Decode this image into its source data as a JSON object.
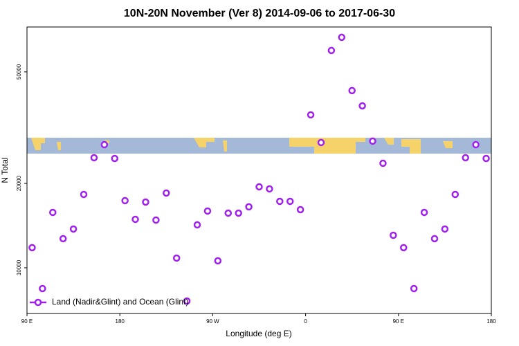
{
  "chart_data": {
    "type": "scatter",
    "title": "10N-20N November (Ver 8)   2014-09-06 to 2017-06-30",
    "x_label": "Longitude (deg E)",
    "y_label": "N Total",
    "xlim": [
      90,
      540
    ],
    "xticks": [
      {
        "value": 90,
        "label": "90 E"
      },
      {
        "value": 180,
        "label": "180"
      },
      {
        "value": 270,
        "label": "90 W"
      },
      {
        "value": 360,
        "label": "0"
      },
      {
        "value": 450,
        "label": "90 E"
      },
      {
        "value": 540,
        "label": "180"
      }
    ],
    "ylim": [
      6870,
      72300
    ],
    "ylog": true,
    "yticks": [
      10000,
      20000,
      50000
    ],
    "legend": "bottom-left",
    "series": [
      {
        "name": "Land (Nadir&Glint) and Ocean (Glint)",
        "color": "#a020f0",
        "x": [
          95,
          105,
          115,
          125,
          135,
          145,
          155,
          165,
          175,
          185,
          195,
          205,
          215,
          225,
          235,
          245,
          255,
          265,
          275,
          285,
          295,
          305,
          315,
          325,
          335,
          345,
          355,
          365,
          375,
          385,
          395,
          405,
          415,
          425,
          435,
          445,
          455,
          465,
          475,
          485,
          495,
          505,
          515,
          525,
          535
        ],
        "values": [
          11800,
          8430,
          15760,
          12700,
          13750,
          18270,
          24700,
          27500,
          24550,
          17360,
          14890,
          17160,
          14800,
          18480,
          10830,
          7610,
          14230,
          15940,
          10590,
          15670,
          15670,
          16500,
          19450,
          19120,
          17260,
          17260,
          16120,
          35130,
          27990,
          59620,
          66420,
          42870,
          37820,
          28310,
          23600,
          13060,
          11800,
          8430,
          15760,
          12700,
          13750,
          18270,
          24700,
          27500,
          24550
        ]
      }
    ]
  }
}
